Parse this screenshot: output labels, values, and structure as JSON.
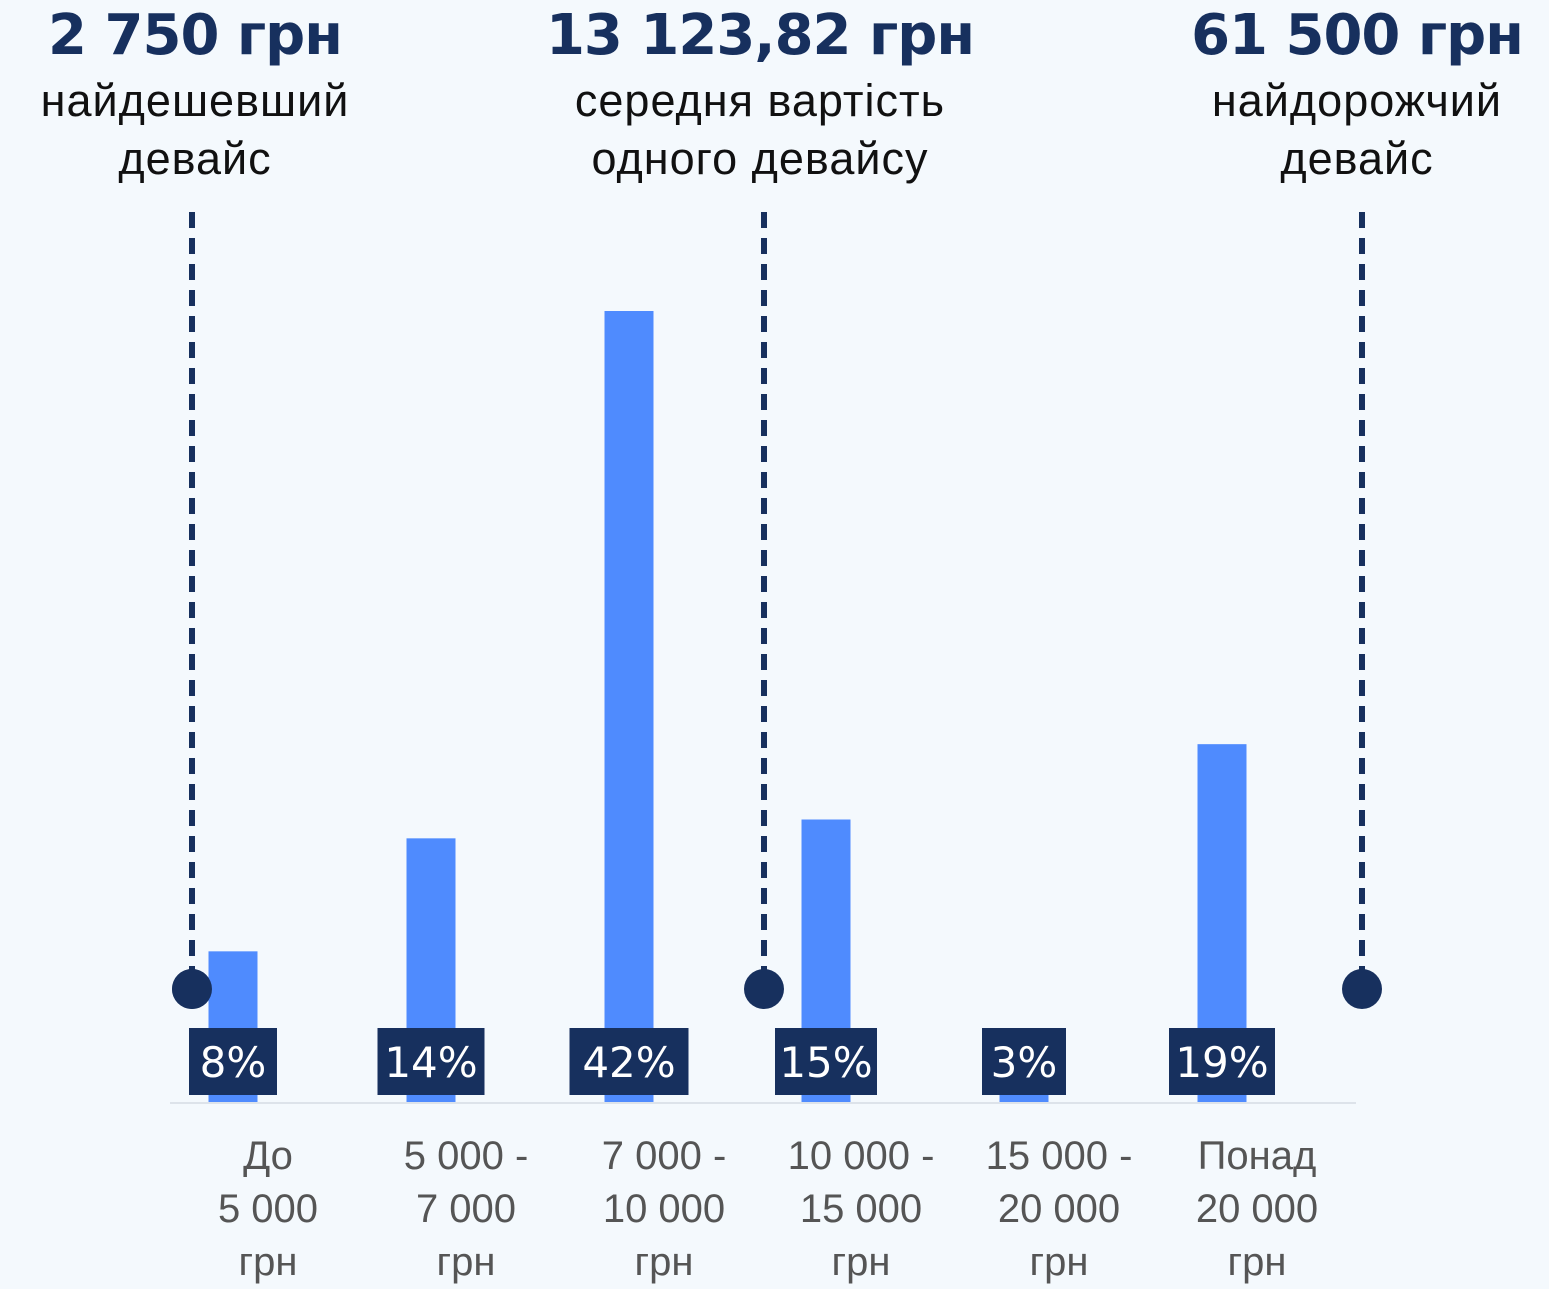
{
  "stats": {
    "min": {
      "value": "2 750 грн",
      "caption_line1": "найдешевший",
      "caption_line2": "девайс"
    },
    "avg": {
      "value": "13 123,82 грн",
      "caption_line1": "середня вартість",
      "caption_line2": "одного девайсу"
    },
    "max": {
      "value": "61 500 грн",
      "caption_line1": "найдорожчий",
      "caption_line2": "девайс"
    }
  },
  "colors": {
    "bar": "#4f8bfe",
    "label_bg": "#17305e",
    "marker": "#17305e",
    "axis": "#dde3ea",
    "background": "#f4f9fd"
  },
  "chart_data": {
    "type": "bar",
    "categories": [
      "До\n5 000\nгрн",
      "5 000 -\n7 000\nгрн",
      "7 000 -\n10 000\nгрн",
      "10 000 -\n15 000\nгрн",
      "15 000 -\n20 000\nгрн",
      "Понад\n20 000\nгрн"
    ],
    "values": [
      8,
      14,
      42,
      15,
      3,
      19
    ],
    "data_labels": [
      "8%",
      "14%",
      "42%",
      "15%",
      "3%",
      "19%"
    ],
    "unit": "%",
    "ylim": [
      0,
      42
    ],
    "grid": false,
    "legend": "none",
    "reference_markers": [
      {
        "name": "min",
        "value_label": "2 750 грн"
      },
      {
        "name": "avg",
        "value_label": "13 123,82 грн"
      },
      {
        "name": "max",
        "value_label": "61 500 грн"
      }
    ]
  }
}
